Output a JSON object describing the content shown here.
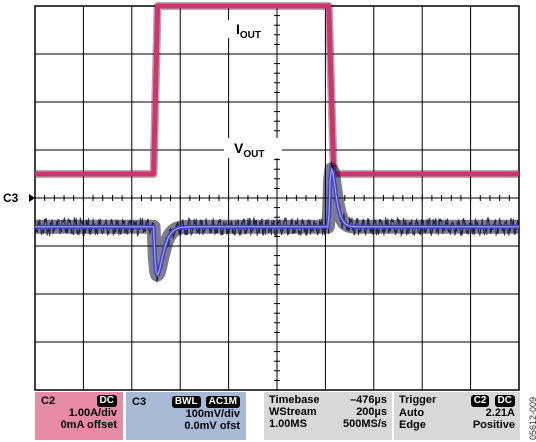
{
  "graticule": {
    "divisions_x": 10,
    "divisions_y": 8,
    "minor_ticks_per_division": 5
  },
  "trace_labels": {
    "iout_main": "I",
    "iout_sub": "OUT",
    "vout_main": "V",
    "vout_sub": "OUT"
  },
  "channel_marker": "C3",
  "colors": {
    "iout_trace": "#d0336f",
    "vout_trace": "#3f3fd0",
    "vout_envelope": "#101030",
    "grid": "#000000",
    "c2_panel": "#e78aa6",
    "c3_panel": "#a8b9d8",
    "info_panel": "#d8d8d8"
  },
  "channel_c2": {
    "name": "C2",
    "coupling": "DC",
    "scale": "1.00A/div",
    "offset": "0mA offset"
  },
  "channel_c3": {
    "name": "C3",
    "bwl": "BWL",
    "coupling": "AC1M",
    "scale": "100mV/div",
    "offset": "0.0mV ofst"
  },
  "timebase": {
    "label": "Timebase",
    "delay": "–476µs",
    "mode": "WStream",
    "per_div": "200µs",
    "memory": "1.00MS",
    "sample_rate": "500MS/s"
  },
  "trigger": {
    "label": "Trigger",
    "source": "C2",
    "coupling": "DC",
    "mode": "Auto",
    "level": "2.21A",
    "type": "Edge",
    "slope": "Positive"
  },
  "figure_id": "05612-009",
  "traces": {
    "iout_div": [
      0.5,
      4.0
    ],
    "iout_edges_div": [
      2.45,
      6.07
    ],
    "vout_baseline_div": -0.6,
    "undershoot_peak_div": -1.6,
    "overshoot_peak_div": 0.6
  }
}
